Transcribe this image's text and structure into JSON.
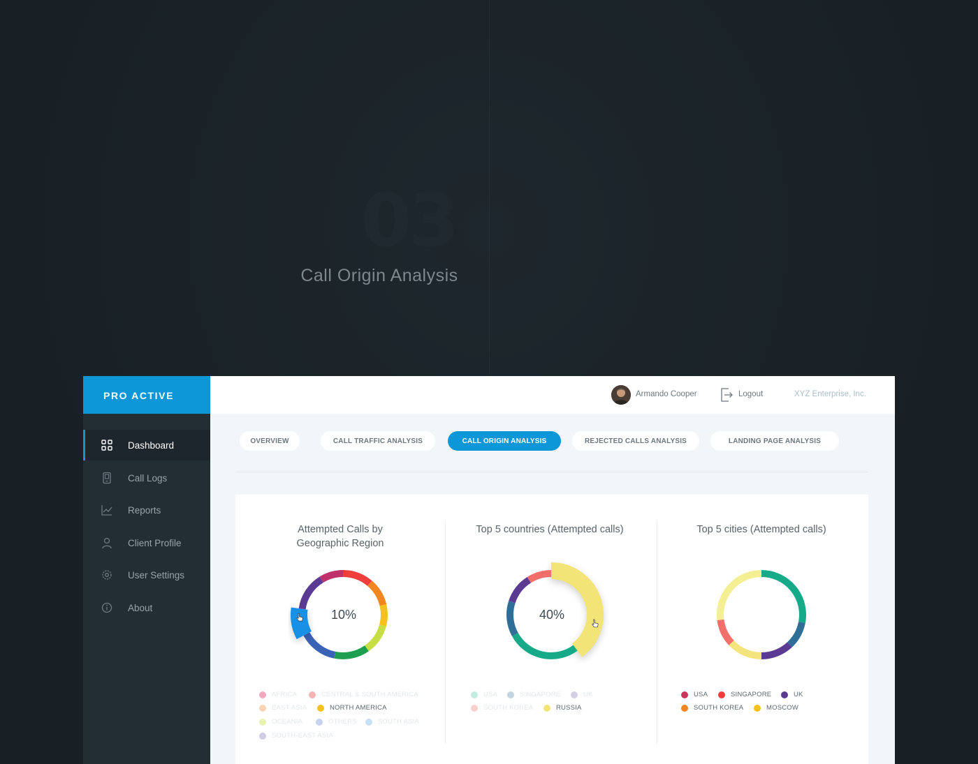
{
  "hero": {
    "number": "03",
    "title": "Call Origin Analysis"
  },
  "brand": "PRO ACTIVE",
  "sidebar": {
    "items": [
      {
        "label": "Dashboard",
        "icon": "grid-icon",
        "active": true
      },
      {
        "label": "Call Logs",
        "icon": "phone-icon"
      },
      {
        "label": "Reports",
        "icon": "line-chart-icon"
      },
      {
        "label": "Client Profile",
        "icon": "user-icon"
      },
      {
        "label": "User Settings",
        "icon": "gear-icon"
      },
      {
        "label": "About",
        "icon": "info-icon"
      }
    ]
  },
  "header": {
    "user_name": "Armando Cooper",
    "logout": "Logout",
    "company": "XYZ Enterprise, Inc."
  },
  "tabs": [
    {
      "label": "OVERVIEW"
    },
    {
      "label": "CALL TRAFFIC ANALYSIS"
    },
    {
      "label": "CALL ORIGIN ANALYSIS",
      "active": true
    },
    {
      "label": "REJECTED CALLS ANALYSIS"
    },
    {
      "label": "LANDING PAGE ANALYSIS"
    }
  ],
  "chart_data": [
    {
      "type": "pie",
      "variant": "donut",
      "title": "Attempted Calls by Geographic Region",
      "title_lines": [
        "Attempted Calls by",
        "Geographic Region"
      ],
      "center_label": "10%",
      "highlighted": "NORTH AMERICA",
      "segments": [
        {
          "name": "AFRICA",
          "value": 9,
          "color": "#c0306b",
          "faded": true
        },
        {
          "name": "CENTRAL & SOUTH AMERICA",
          "value": 11,
          "color": "#ef3e3c",
          "faded": true
        },
        {
          "name": "EAST ASIA",
          "value": 10,
          "color": "#f4861f",
          "faded": true
        },
        {
          "name": "OTHERS",
          "value": 8,
          "color": "#f5c21b",
          "faded": true
        },
        {
          "name": "OCEANIA",
          "value": 11,
          "color": "#c7de45",
          "faded": true
        },
        {
          "name": "SOUTH ASIA",
          "value": 13,
          "color": "#1e9e4f",
          "faded": true
        },
        {
          "name": "SOUTH-EAST ASIA",
          "value": 14,
          "color": "#3a62b7",
          "faded": true
        },
        {
          "name": "NORTH AMERICA",
          "value": 10,
          "color": "#1790e6",
          "faded": false
        },
        {
          "name": "",
          "value": 14,
          "color": "#5b3a94",
          "faded": true
        }
      ],
      "legend_colors": {
        "AFRICA": "#f1a8bf",
        "CENTRAL & SOUTH AMERICA": "#f7b3b2",
        "EAST ASIA": "#f9d3b3",
        "NORTH AMERICA": "#f5c21b",
        "OCEANIA": "#e8f2b3",
        "OTHERS": "#c6d3ee",
        "SOUTH ASIA": "#c7def7",
        "SOUTH-EAST ASIA": "#d0cbe3"
      }
    },
    {
      "type": "pie",
      "variant": "donut",
      "title": "Top 5 countries (Attempted calls)",
      "center_label": "40%",
      "highlighted": "RUSSIA",
      "segments": [
        {
          "name": "RUSSIA",
          "value": 40,
          "color": "#f3e477",
          "faded": false
        },
        {
          "name": "USA",
          "value": 27,
          "color": "#16aa88",
          "faded": true
        },
        {
          "name": "SINGAPORE",
          "value": 13,
          "color": "#2f6f97",
          "faded": true
        },
        {
          "name": "UK",
          "value": 11,
          "color": "#5b3a94",
          "faded": true
        },
        {
          "name": "SOUTH KOREA",
          "value": 9,
          "color": "#f36f6a",
          "faded": true
        }
      ],
      "legend": [
        {
          "name": "USA",
          "color": "#c3ece0",
          "faded": true
        },
        {
          "name": "SINGAPORE",
          "color": "#c4d4e3",
          "faded": true
        },
        {
          "name": "UK",
          "color": "#d5cfe6",
          "faded": true
        },
        {
          "name": "SOUTH KOREA",
          "color": "#fbcfcd",
          "faded": true
        },
        {
          "name": "RUSSIA",
          "color": "#f3e477",
          "faded": false
        }
      ]
    },
    {
      "type": "pie",
      "variant": "donut",
      "title": "Top 5 cities (Attempted calls)",
      "segments": [
        {
          "name": "",
          "value": 28,
          "color": "#16aa88"
        },
        {
          "name": "",
          "value": 10,
          "color": "#2f6f97"
        },
        {
          "name": "",
          "value": 12,
          "color": "#5b3a94"
        },
        {
          "name": "",
          "value": 13,
          "color": "#f4e47e"
        },
        {
          "name": "",
          "value": 10,
          "color": "#f36f6a"
        },
        {
          "name": "",
          "value": 27,
          "color": "#f4ef93"
        }
      ],
      "legend": [
        {
          "name": "USA",
          "color": "#c8375c"
        },
        {
          "name": "SINGAPORE",
          "color": "#ef3e3c"
        },
        {
          "name": "UK",
          "color": "#5b3a94"
        },
        {
          "name": "SOUTH KOREA",
          "color": "#f4861f"
        },
        {
          "name": "MOSCOW",
          "color": "#f5c21b"
        }
      ]
    }
  ]
}
